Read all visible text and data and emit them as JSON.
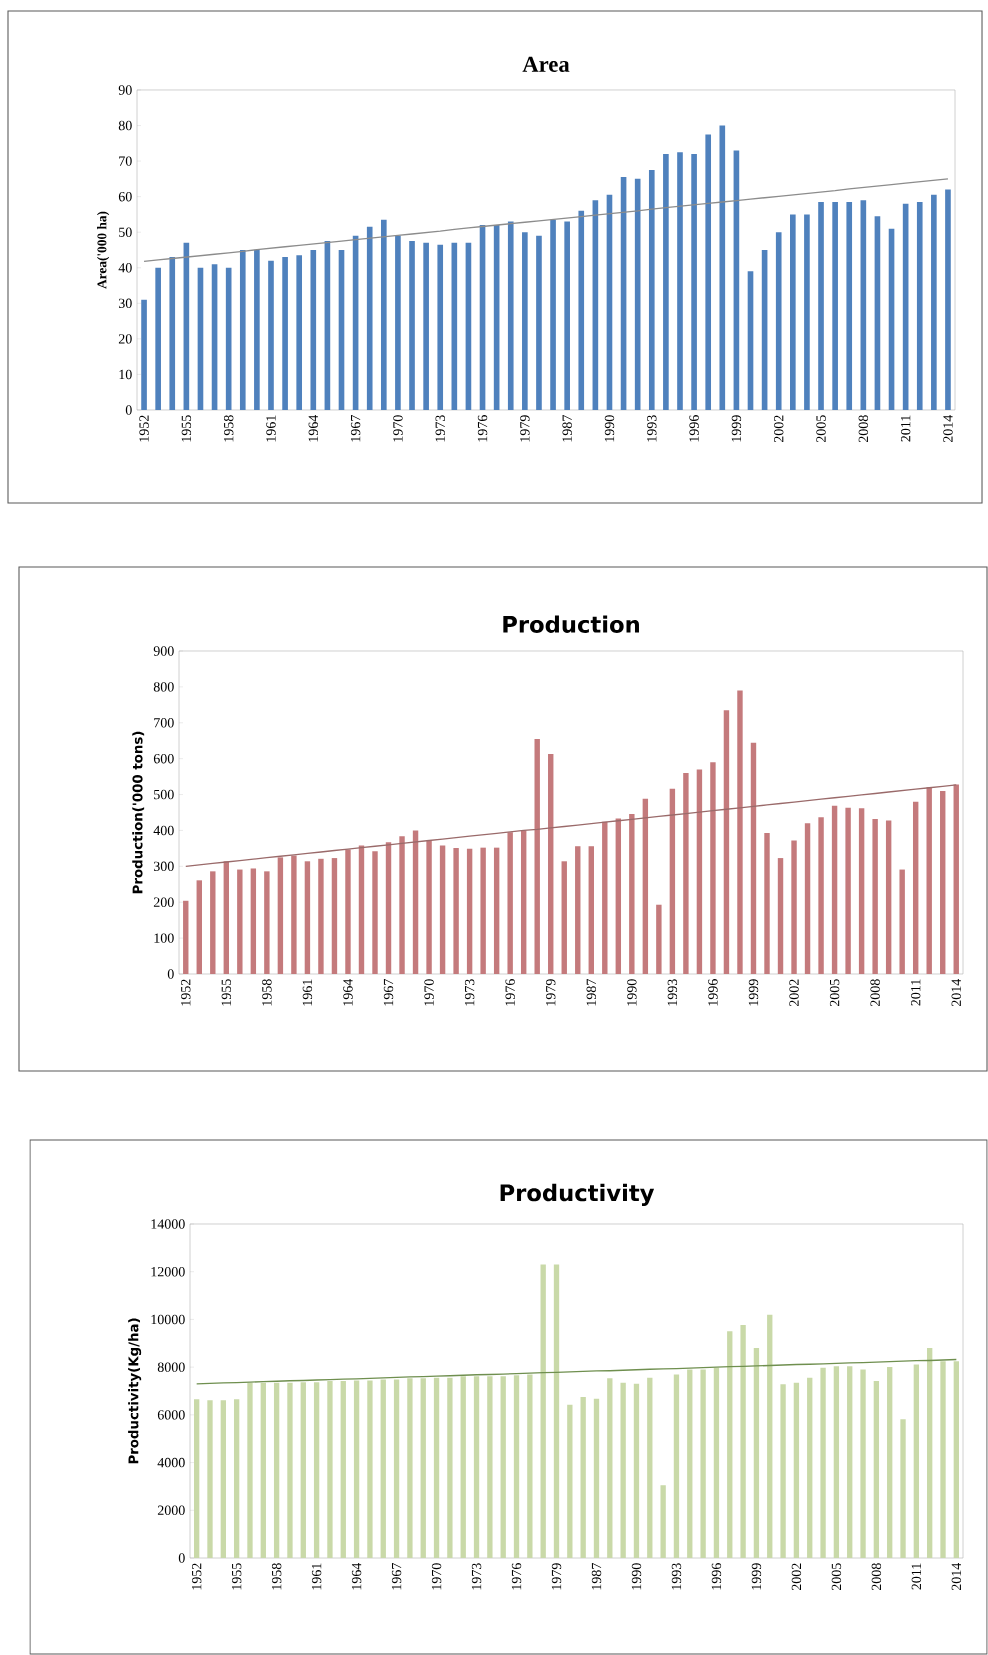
{
  "chart_data": [
    {
      "type": "bar",
      "title": "Area",
      "ylabel": "Area('000 ha)",
      "categories": [
        "1952",
        null,
        null,
        "1955",
        null,
        null,
        "1958",
        null,
        null,
        "1961",
        null,
        null,
        "1964",
        null,
        null,
        "1967",
        null,
        null,
        "1970",
        null,
        null,
        "1973",
        null,
        null,
        "1976",
        null,
        null,
        "1979",
        null,
        null,
        "1987",
        null,
        null,
        "1990",
        null,
        null,
        "1993",
        null,
        null,
        "1996",
        null,
        null,
        "1999",
        null,
        null,
        "2002",
        null,
        null,
        "2005",
        null,
        null,
        "2008",
        null,
        null,
        "2011",
        null,
        null,
        "2014"
      ],
      "series": [
        {
          "type": "bar",
          "color": "#4f81bd",
          "values": [
            31,
            40,
            43,
            47,
            40,
            41,
            40,
            45,
            45,
            42,
            43,
            43.5,
            45,
            47.5,
            45,
            49,
            51.5,
            53.5,
            49,
            47.5,
            47,
            46.5,
            47,
            47,
            52,
            52,
            53,
            50,
            49,
            53.5,
            53,
            56,
            59,
            60.5,
            65.5,
            65,
            67.5,
            72,
            72.5,
            72,
            77.5,
            80,
            73,
            39,
            45,
            50,
            55,
            55,
            58.5,
            58.5,
            58.5,
            59,
            54.5,
            51,
            58,
            58.5,
            60.5,
            62
          ]
        },
        {
          "type": "line",
          "color": "#8c8c8c",
          "values": [
            41.8,
            42.2,
            42.6,
            43.0,
            43.4,
            43.8,
            44.2,
            44.6,
            45.1,
            45.5,
            45.9,
            46.3,
            46.7,
            47.1,
            47.5,
            47.9,
            48.3,
            48.7,
            49.1,
            49.5,
            49.9,
            50.3,
            50.8,
            51.2,
            51.6,
            52.0,
            52.4,
            52.8,
            53.2,
            53.6,
            54.0,
            54.4,
            54.8,
            55.2,
            55.6,
            56.0,
            56.5,
            56.9,
            57.3,
            57.7,
            58.1,
            58.5,
            58.9,
            59.3,
            59.7,
            60.1,
            60.5,
            60.9,
            61.3,
            61.7,
            62.2,
            62.6,
            63.0,
            63.4,
            63.8,
            64.2,
            64.6,
            65.0
          ]
        }
      ],
      "ylim": [
        0,
        90
      ],
      "yticks": [
        0,
        10,
        20,
        30,
        40,
        50,
        60,
        70,
        80,
        90
      ]
    },
    {
      "type": "bar",
      "title": "Production",
      "ylabel": "Production('000 tons)",
      "categories": [
        "1952",
        null,
        null,
        "1955",
        null,
        null,
        "1958",
        null,
        null,
        "1961",
        null,
        null,
        "1964",
        null,
        null,
        "1967",
        null,
        null,
        "1970",
        null,
        null,
        "1973",
        null,
        null,
        "1976",
        null,
        null,
        "1979",
        null,
        null,
        "1987",
        null,
        null,
        "1990",
        null,
        null,
        "1993",
        null,
        null,
        "1996",
        null,
        null,
        "1999",
        null,
        null,
        "2002",
        null,
        null,
        "2005",
        null,
        null,
        "2008",
        null,
        null,
        "2011",
        null,
        null,
        "2014"
      ],
      "series": [
        {
          "type": "bar",
          "color": "#c47a7c",
          "values": [
            204,
            261,
            286,
            314,
            291,
            294,
            286,
            325,
            330,
            314,
            321,
            323,
            347,
            358,
            342,
            367,
            384,
            400,
            372,
            358,
            351,
            349,
            352,
            352,
            395,
            400,
            655,
            613,
            314,
            356,
            356,
            424,
            433,
            446,
            488,
            193,
            516,
            560,
            570,
            590,
            735,
            790,
            644,
            393,
            323,
            372,
            420,
            437,
            469,
            463,
            462,
            432,
            428,
            291,
            480,
            520,
            510,
            528
          ]
        },
        {
          "type": "line",
          "color": "#9a6a6a",
          "values": [
            300,
            304,
            308,
            312,
            316,
            320,
            324,
            328,
            332,
            336,
            340,
            344,
            348,
            352,
            356,
            360,
            364,
            368,
            372,
            376,
            380,
            384,
            388,
            392,
            396,
            400,
            403,
            407,
            411,
            415,
            419,
            423,
            427,
            431,
            435,
            439,
            443,
            447,
            451,
            455,
            459,
            463,
            467,
            471,
            475,
            479,
            483,
            487,
            491,
            495,
            499,
            503,
            507,
            511,
            515,
            519,
            523,
            527
          ]
        }
      ],
      "ylim": [
        0,
        900
      ],
      "yticks": [
        0,
        100,
        200,
        300,
        400,
        500,
        600,
        700,
        800,
        900
      ]
    },
    {
      "type": "bar",
      "title": "Productivity",
      "ylabel": "Productivity(Kg/ha)",
      "categories": [
        "1952",
        null,
        null,
        "1955",
        null,
        null,
        "1958",
        null,
        null,
        "1961",
        null,
        null,
        "1964",
        null,
        null,
        "1967",
        null,
        null,
        "1970",
        null,
        null,
        "1973",
        null,
        null,
        "1976",
        null,
        null,
        "1979",
        null,
        null,
        "1987",
        null,
        null,
        "1990",
        null,
        null,
        "1993",
        null,
        null,
        "1996",
        null,
        null,
        "1999",
        null,
        null,
        "2002",
        null,
        null,
        "2005",
        null,
        null,
        "2008",
        null,
        null,
        "2011",
        null,
        null,
        "2014"
      ],
      "series": [
        {
          "type": "bar",
          "color": "#c9d9a8",
          "values": [
            6650,
            6610,
            6610,
            6650,
            7350,
            7350,
            7350,
            7350,
            7370,
            7370,
            7420,
            7420,
            7440,
            7440,
            7480,
            7480,
            7530,
            7530,
            7550,
            7550,
            7620,
            7620,
            7620,
            7620,
            7660,
            7690,
            12300,
            12300,
            6420,
            6750,
            6680,
            7530,
            7350,
            7300,
            7550,
            3050,
            7690,
            7900,
            7900,
            7970,
            9500,
            9770,
            8800,
            10200,
            7280,
            7350,
            7550,
            7970,
            8040,
            8040,
            7900,
            7420,
            8010,
            5820,
            8110,
            8800,
            8250,
            8250
          ]
        },
        {
          "type": "line",
          "color": "#6f8f4f",
          "values": [
            7300,
            7320,
            7340,
            7350,
            7370,
            7390,
            7410,
            7430,
            7440,
            7460,
            7480,
            7500,
            7510,
            7530,
            7550,
            7570,
            7590,
            7600,
            7620,
            7640,
            7660,
            7680,
            7690,
            7710,
            7730,
            7750,
            7770,
            7780,
            7800,
            7820,
            7840,
            7850,
            7870,
            7890,
            7910,
            7930,
            7940,
            7960,
            7980,
            8000,
            8020,
            8030,
            8050,
            8070,
            8090,
            8110,
            8120,
            8140,
            8160,
            8180,
            8190,
            8210,
            8230,
            8250,
            8270,
            8280,
            8300,
            8320
          ]
        }
      ],
      "ylim": [
        0,
        14000
      ],
      "yticks": [
        0,
        2000,
        4000,
        6000,
        8000,
        10000,
        12000,
        14000
      ]
    }
  ]
}
